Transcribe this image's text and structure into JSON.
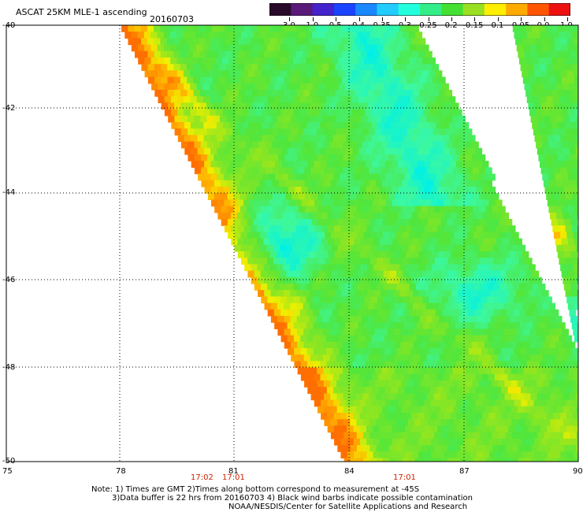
{
  "header": {
    "title": "ASCAT 25KM MLE-1 ascending",
    "date": "20160703"
  },
  "colorbar": {
    "labels": [
      "-3.0",
      "-1.0",
      "-0.5",
      "-0.4",
      "-0.35",
      "-0.3",
      "-0.25",
      "-0.2",
      "-0.15",
      "-0.1",
      "-0.05",
      "0.0",
      "1.0"
    ],
    "colors": [
      "#2a0a2a",
      "#5a1a7a",
      "#4422cc",
      "#1a44ff",
      "#1a88ff",
      "#22ccff",
      "#22ffdd",
      "#33ee88",
      "#44e033",
      "#99e022",
      "#ffee00",
      "#ffaa00",
      "#ff5500",
      "#ee1111"
    ]
  },
  "axes": {
    "lat_labels": [
      "-40",
      "-42",
      "-44",
      "-46",
      "-48",
      "-50"
    ],
    "lon_labels": [
      "75",
      "78",
      "81",
      "84",
      "87",
      "90"
    ],
    "lat_range": [
      -50,
      -40
    ],
    "lon_range": [
      75,
      90
    ]
  },
  "time_labels": [
    "17:02",
    "17:01",
    "17:01"
  ],
  "notes": {
    "line1": "Note: 1) Times are GMT 2)Times along bottom correspond to measurement at -45S",
    "line2": "3)Data buffer is 22 hrs from 20160703 4) Black wind barbs indicate possible contamination",
    "line3": "NOAA/NESDIS/Center for Satellite Applications and Research"
  }
}
